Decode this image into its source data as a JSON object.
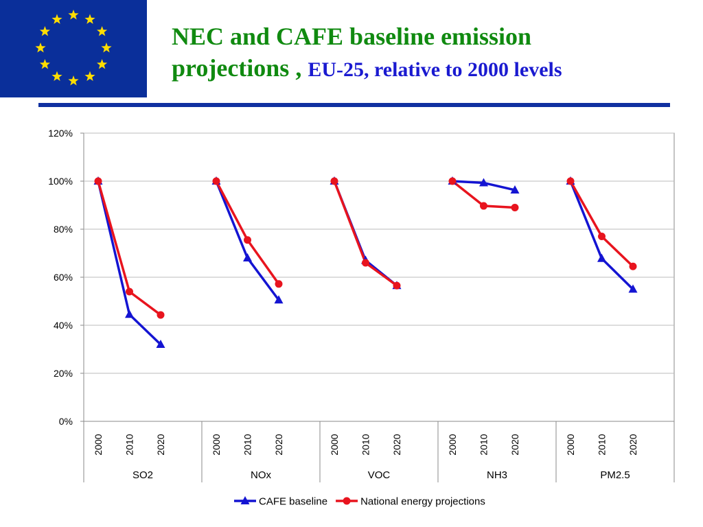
{
  "slide": {
    "title_line1": "NEC and CAFE baseline emission",
    "title_line2": "projections ,",
    "title_sub": "EU-25, relative to 2000 levels"
  },
  "colors": {
    "flag": "#0a2f9a",
    "stars": "#ffdd00",
    "title": "#108a10",
    "subtitle": "#1a1ad0",
    "rule": "#1030a0"
  },
  "chart_data": {
    "type": "line",
    "yticks": [
      "0%",
      "20%",
      "40%",
      "60%",
      "80%",
      "100%",
      "120%"
    ],
    "ylim": [
      0,
      120
    ],
    "grid": true,
    "legend_position": "bottom",
    "groups": [
      "SO2",
      "NOx",
      "VOC",
      "NH3",
      "PM2.5"
    ],
    "years": [
      "2000",
      "2010",
      "2020"
    ],
    "series": [
      {
        "name": "CAFE baseline",
        "color": "#1414d2",
        "marker": "triangle",
        "values": [
          [
            100,
            44.5,
            32
          ],
          [
            100,
            68,
            50.5
          ],
          [
            100,
            67,
            56.5
          ],
          [
            100,
            99.3,
            96.3
          ],
          [
            100,
            67.8,
            55
          ]
        ]
      },
      {
        "name": "National energy projections",
        "color": "#e8141e",
        "marker": "circle",
        "values": [
          [
            100,
            54,
            44.3
          ],
          [
            100,
            75.5,
            57.2
          ],
          [
            100,
            66,
            56.5
          ],
          [
            100,
            89.7,
            89
          ],
          [
            100,
            77,
            64.5
          ]
        ]
      }
    ]
  }
}
